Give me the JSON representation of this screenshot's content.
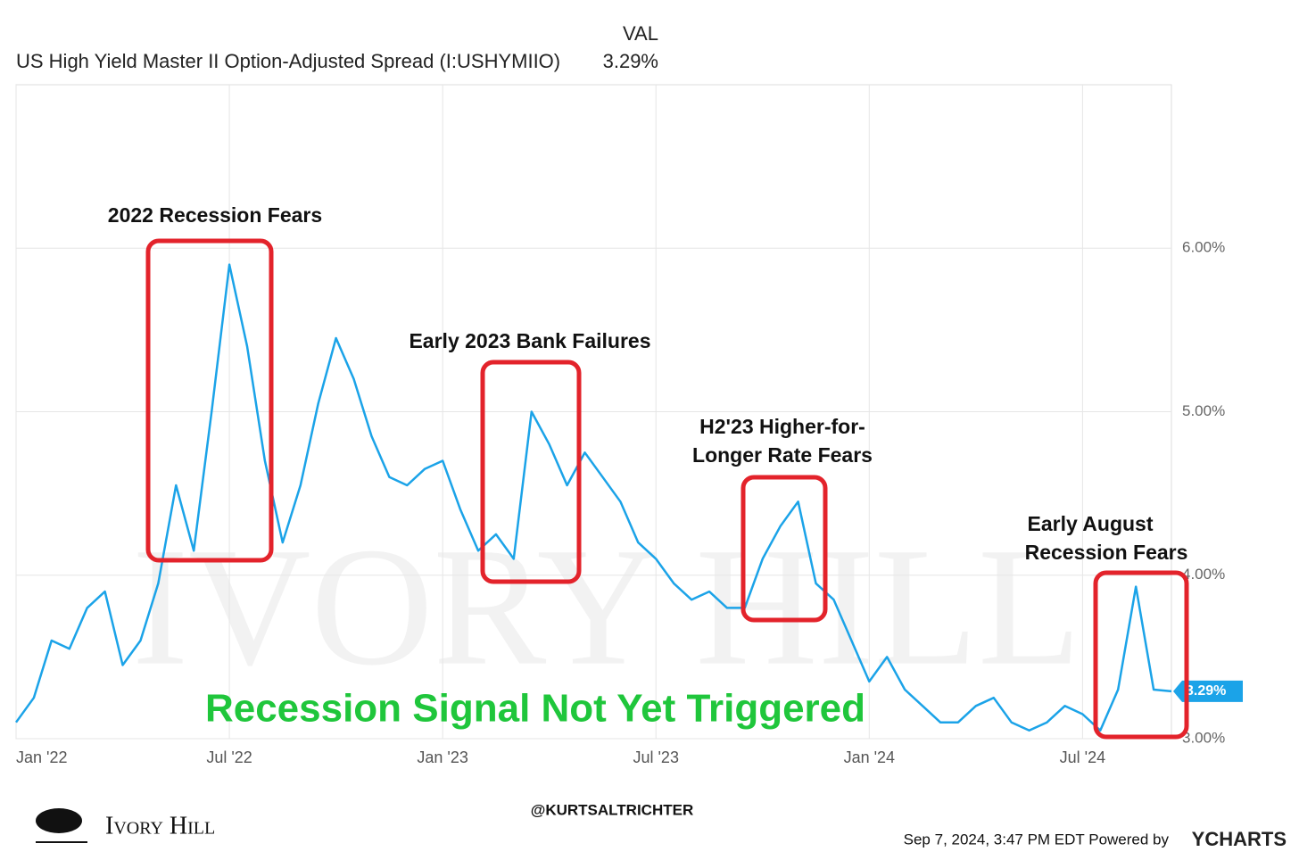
{
  "chart_data": {
    "type": "line",
    "header_label": "VAL",
    "series_title": "US High Yield Master II Option-Adjusted Spread (I:USHYMIIO)",
    "current_label": "3.29%",
    "categories": [
      "Jan '22",
      null,
      null,
      null,
      null,
      null,
      null,
      null,
      null,
      null,
      null,
      null,
      "Jul '22",
      null,
      null,
      null,
      null,
      null,
      null,
      null,
      null,
      null,
      null,
      null,
      "Jan '23",
      null,
      null,
      null,
      null,
      null,
      null,
      null,
      null,
      null,
      null,
      null,
      "Jul '23",
      null,
      null,
      null,
      null,
      null,
      null,
      null,
      null,
      null,
      null,
      null,
      "Jan '24",
      null,
      null,
      null,
      null,
      null,
      null,
      null,
      null,
      null,
      null,
      null,
      "Jul '24",
      null,
      null,
      null,
      null,
      null
    ],
    "series": [
      {
        "name": "US High Yield Master II Option-Adjusted Spread (I:USHYMIIO)",
        "color": "#1ba3e8",
        "values": [
          3.1,
          3.25,
          3.6,
          3.55,
          3.8,
          3.9,
          3.45,
          3.6,
          3.95,
          4.55,
          4.15,
          5.0,
          5.9,
          5.4,
          4.7,
          4.2,
          4.55,
          5.05,
          5.45,
          5.2,
          4.85,
          4.6,
          4.55,
          4.65,
          4.7,
          4.4,
          4.15,
          4.25,
          4.1,
          5.0,
          4.8,
          4.55,
          4.75,
          4.6,
          4.45,
          4.2,
          4.1,
          3.95,
          3.85,
          3.9,
          3.8,
          3.8,
          4.1,
          4.3,
          4.45,
          3.95,
          3.85,
          3.6,
          3.35,
          3.5,
          3.3,
          3.2,
          3.1,
          3.1,
          3.2,
          3.25,
          3.1,
          3.05,
          3.1,
          3.2,
          3.15,
          3.05,
          3.3,
          3.93,
          3.3,
          3.29
        ]
      }
    ],
    "ylim": [
      3.0,
      7.0
    ],
    "yticks": [
      {
        "value": 3,
        "label": "3.00%"
      },
      {
        "value": 4,
        "label": "4.00%"
      },
      {
        "value": 5,
        "label": "5.00%"
      },
      {
        "value": 6,
        "label": "6.00%"
      }
    ],
    "grid": true,
    "annotations": [
      {
        "text": [
          "2022 Recession Fears"
        ]
      },
      {
        "text": [
          "Early 2023 Bank Failures"
        ]
      },
      {
        "text": [
          "H2'23 Higher-for-",
          "Longer Rate Fears"
        ]
      },
      {
        "text": [
          "Early August",
          "Recession Fears"
        ]
      }
    ],
    "headline": "Recession Signal Not Yet Triggered",
    "handle": "@KURTSALTRICHTER",
    "brand": "Ivory Hill",
    "timestamp": "Sep 7, 2024, 3:47 PM EDT Powered by",
    "provider": "YCHARTS"
  }
}
